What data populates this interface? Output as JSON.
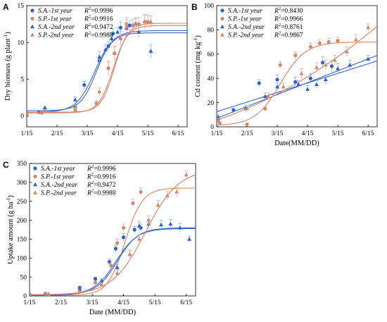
{
  "colors": {
    "sa": "#3a66c8",
    "sp": "#d9846a",
    "sa_fill": "#2f5fcc",
    "sp_fill": "#cf8a6a",
    "err_sa": "#9db6ea",
    "err_sp": "#f2b1b1"
  },
  "chart_data": [
    {
      "panel": "A",
      "type": "scatter",
      "ylabel_main": "Dry biomass (g plant",
      "ylabel_sup": "-1",
      "ylabel_close": ")",
      "xlabel": "",
      "xticks": [
        "1/15",
        "2/15",
        "3/15",
        "4/15",
        "5/15",
        "6/15"
      ],
      "xlim": [
        0,
        5.3
      ],
      "ylim": [
        -1.5,
        15
      ],
      "yticks": [
        0,
        5,
        10,
        15
      ],
      "legend": {
        "position": "top-left"
      },
      "series": [
        {
          "name": "S.A.-1st year",
          "r2_label": "R",
          "r2_value": "=0.9996",
          "marker": "circle",
          "group": "sa",
          "x": [
            0,
            0.4,
            1.6,
            1.9,
            2.4,
            2.7,
            2.85,
            3.1,
            3.4,
            3.6
          ],
          "y": [
            0.4,
            0.5,
            1.2,
            4.2,
            7.5,
            9.5,
            11.2,
            12.0,
            12.3,
            12.5
          ],
          "err": [
            0.1,
            0.1,
            0.3,
            0.5,
            0.7,
            0.6,
            0.7,
            0.8,
            0.6,
            0.7
          ],
          "fit": {
            "L": 11.6,
            "k": 3.3,
            "x0": 2.25,
            "y0": 0.5
          }
        },
        {
          "name": "S.P.-1st year",
          "r2_label": "R",
          "r2_value": "=0.9916",
          "marker": "circle",
          "group": "sp",
          "x": [
            0,
            0.5,
            1.6,
            2.3,
            2.7,
            2.9,
            3.1,
            3.3,
            3.5,
            3.7,
            3.9,
            4.0
          ],
          "y": [
            0.3,
            0.4,
            1.0,
            1.7,
            6.5,
            8.5,
            10.5,
            12.5,
            12.3,
            12.5,
            12.8,
            12.8
          ],
          "err": [
            0.1,
            0.1,
            0.3,
            0.4,
            1.0,
            1.0,
            1.0,
            0.9,
            0.8,
            0.9,
            1.0,
            0.9
          ],
          "fit": {
            "L": 12.3,
            "k": 4.2,
            "x0": 2.85,
            "y0": 0.4
          }
        },
        {
          "name": "S.A.-2nd year",
          "r2_label": "R",
          "r2_value": "=0.9472",
          "marker": "triangle",
          "group": "sa",
          "x": [
            0.6,
            1.6,
            2.4,
            2.6,
            2.8,
            3.0,
            3.3,
            3.7,
            4.1
          ],
          "y": [
            1.1,
            2.2,
            8.0,
            9.0,
            10.5,
            11.4,
            11.9,
            11.4,
            8.8
          ],
          "err": [
            0.2,
            0.4,
            0.8,
            0.7,
            0.8,
            0.7,
            0.6,
            0.8,
            0.9
          ],
          "fit": {
            "L": 11.3,
            "k": 3.8,
            "x0": 2.3,
            "y0": 0.7
          }
        },
        {
          "name": "S.P.-2nd year",
          "r2_label": "R",
          "r2_value": "=0.9988",
          "marker": "triangle",
          "group": "sp",
          "x": [
            0.6,
            1.6,
            2.4,
            2.7,
            2.9,
            3.1,
            3.3,
            3.6,
            3.9,
            4.1
          ],
          "y": [
            0.7,
            0.8,
            3.3,
            6.5,
            8.5,
            10.5,
            12.2,
            12.6,
            12.8,
            12.8
          ],
          "err": [
            0.1,
            0.2,
            0.5,
            0.8,
            0.9,
            1.0,
            0.9,
            0.8,
            0.9,
            0.8
          ],
          "fit": {
            "L": 12.6,
            "k": 4.5,
            "x0": 2.9,
            "y0": 0.5
          }
        }
      ]
    },
    {
      "panel": "B",
      "type": "scatter",
      "ylabel_main": "Cd content (mg kg",
      "ylabel_sup": "-1",
      "ylabel_close": ")",
      "xlabel": "Date(MM/DD)",
      "xticks": [
        "1/15",
        "2/15",
        "3/15",
        "4/15",
        "5/15",
        "6/15"
      ],
      "xlim": [
        0,
        5.3
      ],
      "ylim": [
        0,
        100
      ],
      "yticks": [
        0,
        20,
        40,
        60,
        80,
        100
      ],
      "legend": {
        "position": "top-left"
      },
      "series": [
        {
          "name": "S.A.-1st year",
          "r2_label": "R",
          "r2_value": "=0.8430",
          "marker": "circle",
          "group": "sa",
          "x": [
            0.05,
            0.55,
            1.4,
            2.0,
            2.6,
            3.1,
            3.5,
            3.8
          ],
          "y": [
            6,
            14,
            36,
            39,
            37,
            40,
            53,
            50
          ],
          "err": [
            2,
            3,
            3,
            4,
            4,
            4,
            5,
            5
          ],
          "fit": {
            "type": "poly",
            "coef": [
              12.5,
              7.9,
              0.0
            ]
          }
        },
        {
          "name": "S.P.-1st year",
          "r2_label": "R",
          "r2_value": "=0.9966",
          "marker": "circle",
          "group": "sp",
          "x": [
            0.1,
            1.0,
            1.6,
            2.1,
            2.6,
            3.1,
            3.4,
            3.7,
            4.0
          ],
          "y": [
            3,
            2,
            15,
            51,
            59,
            66,
            69,
            70,
            71
          ],
          "err": [
            1,
            1,
            2,
            3,
            3,
            3,
            3,
            3,
            3
          ],
          "fit": {
            "type": "logistic",
            "L": 70,
            "k": 2.4,
            "x0": 2.1,
            "y0": 1
          }
        },
        {
          "name": "S.A.-2nd year",
          "r2_label": "R",
          "r2_value": "=0.8761",
          "marker": "triangle",
          "group": "sa",
          "x": [
            0.05,
            0.95,
            1.6,
            2.0,
            2.7,
            3.0,
            3.3,
            3.6,
            4.0,
            4.4,
            5.0
          ],
          "y": [
            8,
            15,
            25,
            33,
            35,
            31,
            35,
            39,
            48,
            51,
            56
          ],
          "err": [
            2,
            3,
            3,
            3,
            3,
            3,
            3,
            4,
            4,
            4,
            3
          ],
          "fit": {
            "type": "poly",
            "coef": [
              7.0,
              9.8,
              0.0
            ]
          }
        },
        {
          "name": "S.P.-2nd year",
          "r2_label": "R",
          "r2_value": "=0.9867",
          "marker": "triangle",
          "group": "sp",
          "x": [
            0.05,
            1.0,
            1.7,
            2.2,
            2.8,
            3.3,
            3.6,
            3.9,
            4.3,
            4.6,
            5.0
          ],
          "y": [
            5,
            15,
            25,
            33,
            44,
            49,
            51,
            55,
            62,
            72,
            82
          ],
          "err": [
            2,
            2,
            3,
            3,
            4,
            4,
            4,
            4,
            4,
            4,
            3
          ],
          "fit": {
            "type": "poly",
            "coef": [
              5.5,
              8.5,
              1.15
            ]
          }
        }
      ]
    },
    {
      "panel": "C",
      "type": "scatter",
      "ylabel_main": "Uptake amount (g ha",
      "ylabel_sup": "-1",
      "ylabel_close": ")",
      "xlabel": "Date (MM/DD)",
      "xticks": [
        "1/15",
        "2/15",
        "3/15",
        "4/15",
        "5/15",
        "6/15"
      ],
      "xlim": [
        0,
        5.3
      ],
      "ylim": [
        0,
        350
      ],
      "yticks": [
        0,
        50,
        100,
        150,
        200,
        250,
        300,
        350
      ],
      "legend": {
        "position": "top-left"
      },
      "series": [
        {
          "name": "S.A.-1st year",
          "r2_label": "R",
          "r2_value": "=0.9996",
          "marker": "circle",
          "group": "sa",
          "x": [
            0,
            0.5,
            1.6,
            2.1,
            2.55,
            2.75,
            3.0,
            3.35,
            3.55
          ],
          "y": [
            4,
            6,
            22,
            45,
            90,
            125,
            155,
            175,
            180
          ],
          "err": [
            1,
            1,
            3,
            5,
            8,
            9,
            10,
            9,
            10
          ],
          "fit": {
            "L": 178,
            "k": 2.9,
            "x0": 2.75,
            "y0": 3
          }
        },
        {
          "name": "S.P.-1st year",
          "r2_label": "R",
          "r2_value": "=0.9916",
          "marker": "circle",
          "group": "sp",
          "x": [
            0,
            0.5,
            1.6,
            2.1,
            2.6,
            2.8,
            3.0,
            3.3,
            3.55
          ],
          "y": [
            3,
            5,
            15,
            35,
            80,
            140,
            180,
            245,
            275
          ],
          "err": [
            1,
            1,
            2,
            4,
            8,
            10,
            10,
            10,
            10
          ],
          "fit": {
            "L": 285,
            "k": 3.6,
            "x0": 3.05,
            "y0": 2
          }
        },
        {
          "name": "S.A.-2nd year",
          "r2_label": "R",
          "r2_value": "=0.9472",
          "marker": "triangle",
          "group": "sa",
          "x": [
            0.6,
            1.6,
            2.3,
            2.8,
            3.2,
            3.5,
            3.8,
            4.2,
            4.5,
            4.8,
            5.1
          ],
          "y": [
            5,
            18,
            40,
            75,
            110,
            185,
            190,
            188,
            190,
            180,
            150
          ],
          "err": [
            1,
            3,
            5,
            8,
            10,
            12,
            12,
            12,
            12,
            12,
            8
          ],
          "fit": {
            "L": 180,
            "k": 3.0,
            "x0": 2.8,
            "y0": 3
          }
        },
        {
          "name": "S.P.-2nd year",
          "r2_label": "R",
          "r2_value": "=0.9988",
          "marker": "triangle",
          "group": "sp",
          "x": [
            0.6,
            1.6,
            2.3,
            2.8,
            3.2,
            3.5,
            3.8,
            4.1,
            4.4,
            4.7,
            5.0
          ],
          "y": [
            4,
            12,
            30,
            60,
            110,
            150,
            200,
            240,
            265,
            275,
            320
          ],
          "err": [
            1,
            2,
            4,
            8,
            10,
            12,
            12,
            12,
            12,
            12,
            10
          ],
          "fit": {
            "L": 335,
            "k": 1.9,
            "x0": 3.7,
            "y0": 3
          }
        }
      ]
    }
  ]
}
